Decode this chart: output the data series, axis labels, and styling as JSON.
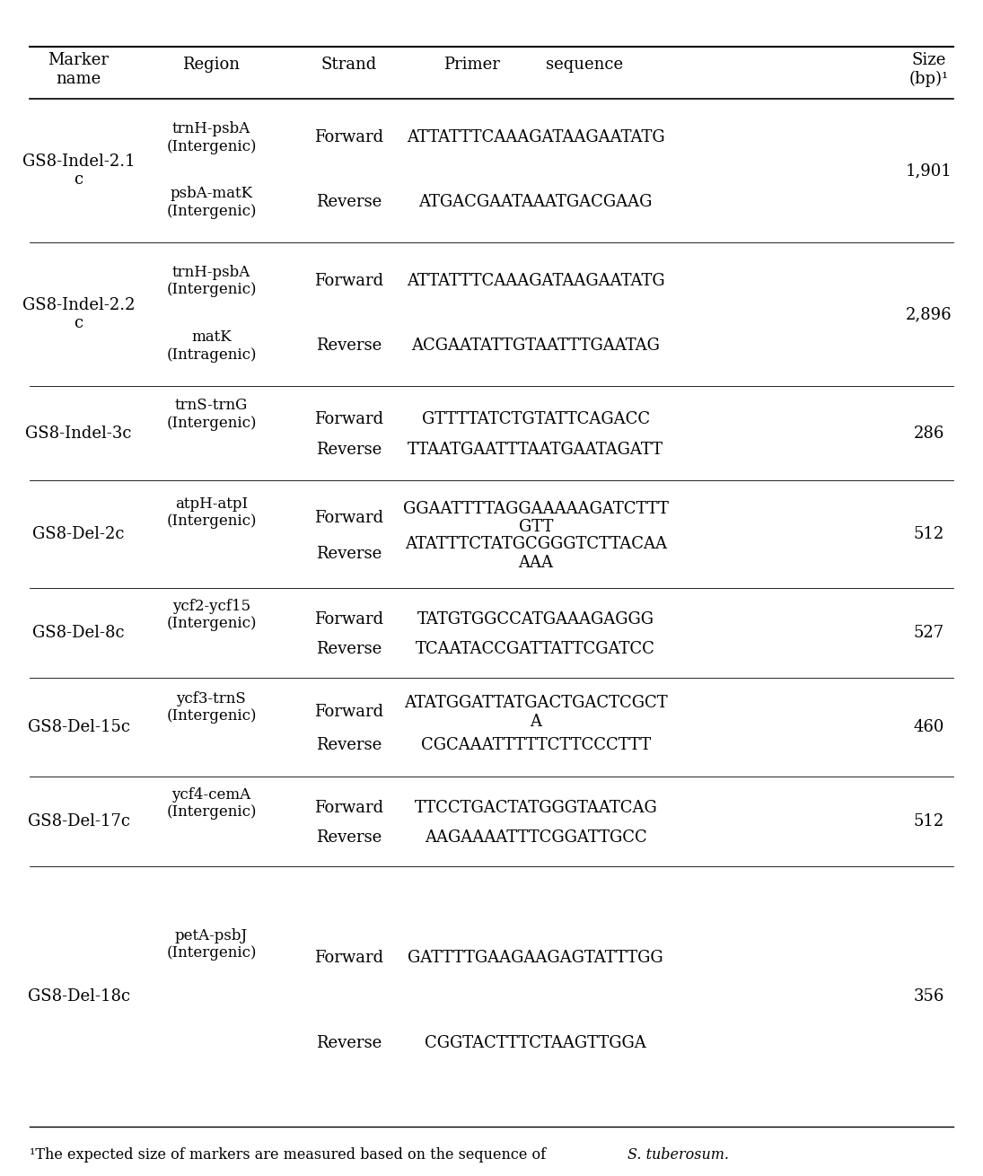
{
  "figsize": [
    10.95,
    13.1
  ],
  "dpi": 100,
  "background_color": "#ffffff",
  "header": {
    "col1": "Marker\nname",
    "col2": "Region",
    "col3": "Strand",
    "col4_a": "Primer",
    "col4_b": "sequence",
    "col5": "Size\n(bp)¹"
  },
  "footnote_normal": "¹The expected size of markers are measured based on the sequence of ",
  "footnote_italic": "S. tuberosum.",
  "rows": [
    {
      "marker": "GS8-Indel-2.1\nc",
      "region1": "trnH-psbA\n(Intergenic)",
      "region2": "psbA-matK\n(Intergenic)",
      "strand1": "Forward",
      "strand2": "Reverse",
      "seq1": "ATTATTTCAAAGATAAGAATATG",
      "seq2": "ATGACGAATAAATGACGAAG",
      "size": "1,901"
    },
    {
      "marker": "GS8-Indel-2.2\nc",
      "region1": "trnH-psbA\n(Intergenic)",
      "region2": "matK\n(Intragenic)",
      "strand1": "Forward",
      "strand2": "Reverse",
      "seq1": "ATTATTTCAAAGATAAGAATATG",
      "seq2": "ACGAATATTGTAATTTGAATAG",
      "size": "2,896"
    },
    {
      "marker": "GS8-Indel-3c",
      "region1": "trnS-trnG\n(Intergenic)",
      "region2": "",
      "strand1": "Forward",
      "strand2": "Reverse",
      "seq1": "GTTTTATCTGTATTCAGACC",
      "seq2": "TTAATGAATTTAATGAATAGATT",
      "size": "286"
    },
    {
      "marker": "GS8-Del-2c",
      "region1": "atpH-atpI\n(Intergenic)",
      "region2": "",
      "strand1": "Forward",
      "strand2": "Reverse",
      "seq1": "GGAATTTTAGGAAAAAGATCTTT\nGTT",
      "seq2": "ATATTTCTATGCGGGTCTTACAA\nAAA",
      "size": "512"
    },
    {
      "marker": "GS8-Del-8c",
      "region1": "ycf2-ycf15\n(Intergenic)",
      "region2": "",
      "strand1": "Forward",
      "strand2": "Reverse",
      "seq1": "TATGTGGCCATGAAAGAGGG",
      "seq2": "TCAATACCGATTATTCGATCC",
      "size": "527"
    },
    {
      "marker": "GS8-Del-15c",
      "region1": "ycf3-trnS\n(Intergenic)",
      "region2": "",
      "strand1": "Forward",
      "strand2": "Reverse",
      "seq1": "ATATGGATTATGACTGACTCGCT\nA",
      "seq2": "CGCAAATTTTTCTTCCCTTT",
      "size": "460"
    },
    {
      "marker": "GS8-Del-17c",
      "region1": "ycf4-cemA\n(Intergenic)",
      "region2": "",
      "strand1": "Forward",
      "strand2": "Reverse",
      "seq1": "TTCCTGACTATGGGTAATCAG",
      "seq2": "AAGAAAATTTCGGATTGCC",
      "size": "512"
    },
    {
      "marker": "GS8-Del-18c",
      "region1": "petA-psbJ\n(Intergenic)",
      "region2": "",
      "strand1": "Forward",
      "strand2": "Reverse",
      "seq1": "GATTTTGAAGAAGAGTATTTGG",
      "seq2": "CGGTACTTTCTAAGTTGGA",
      "size": "356"
    }
  ],
  "col_x": {
    "marker": 0.08,
    "region": 0.215,
    "strand": 0.355,
    "seq": 0.545,
    "size": 0.945
  },
  "font_size": 13,
  "region_font_size": 12,
  "footnote_font_size": 11.5
}
